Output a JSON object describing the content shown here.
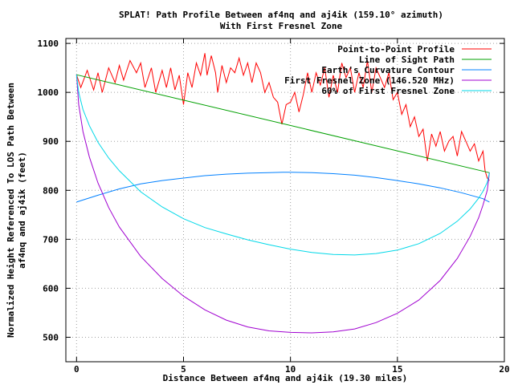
{
  "chart_data": {
    "type": "line",
    "title": "SPLAT! Path Profile Between af4nq and aj4ik (159.10° azimuth)",
    "subtitle": "With First Fresnel Zone",
    "xlabel": "Distance Between af4nq and aj4ik (19.30 miles)",
    "ylabel": "Normalized Height Referenced To LOS Path Between af4nq and aj4ik (feet)",
    "ylabel_lines": [
      "Normalized Height Referenced To LOS Path Between",
      "af4nq and aj4ik (feet)"
    ],
    "xlim": [
      -0.5,
      20
    ],
    "ylim": [
      450,
      1110
    ],
    "xticks": [
      0,
      5,
      10,
      15,
      20
    ],
    "xtick_labels": [
      "0",
      "5",
      "10",
      "15",
      "20"
    ],
    "yticks": [
      500,
      600,
      700,
      800,
      900,
      1000,
      1100
    ],
    "ytick_labels": [
      "500",
      "600",
      "700",
      "800",
      "900",
      "1000",
      "1100"
    ],
    "grid": true,
    "legend_position": "top-right",
    "series": [
      {
        "name": "Point-to-Point Profile",
        "color": "#ff0000",
        "x": [
          0,
          0.2,
          0.5,
          0.8,
          1.0,
          1.2,
          1.5,
          1.8,
          2.0,
          2.2,
          2.5,
          2.8,
          3.0,
          3.2,
          3.5,
          3.7,
          4.0,
          4.2,
          4.4,
          4.6,
          4.8,
          5.0,
          5.2,
          5.4,
          5.6,
          5.8,
          6.0,
          6.1,
          6.3,
          6.5,
          6.6,
          6.8,
          7.0,
          7.2,
          7.4,
          7.6,
          7.8,
          8.0,
          8.2,
          8.4,
          8.6,
          8.8,
          9.0,
          9.2,
          9.4,
          9.6,
          9.8,
          10.0,
          10.2,
          10.4,
          10.6,
          10.8,
          11.0,
          11.2,
          11.4,
          11.6,
          11.8,
          12.0,
          12.2,
          12.4,
          12.6,
          12.8,
          13.0,
          13.2,
          13.4,
          13.6,
          13.8,
          14.0,
          14.2,
          14.4,
          14.6,
          14.8,
          15.0,
          15.2,
          15.4,
          15.6,
          15.8,
          16.0,
          16.2,
          16.4,
          16.6,
          16.8,
          17.0,
          17.2,
          17.4,
          17.6,
          17.8,
          18.0,
          18.2,
          18.4,
          18.6,
          18.8,
          19.0,
          19.1,
          19.2,
          19.3
        ],
        "y": [
          1036,
          1010,
          1045,
          1005,
          1040,
          1000,
          1050,
          1020,
          1055,
          1025,
          1065,
          1040,
          1060,
          1010,
          1050,
          1000,
          1045,
          1010,
          1050,
          1005,
          1035,
          975,
          1040,
          1010,
          1060,
          1035,
          1080,
          1035,
          1075,
          1040,
          1000,
          1055,
          1020,
          1050,
          1040,
          1070,
          1035,
          1060,
          1020,
          1060,
          1040,
          1000,
          1020,
          990,
          980,
          935,
          975,
          980,
          1000,
          960,
          995,
          1040,
          1000,
          1040,
          1015,
          1050,
          990,
          1035,
          1000,
          1060,
          1030,
          1050,
          1000,
          1040,
          1010,
          1065,
          1000,
          1050,
          1030,
          1010,
          1040,
          985,
          1000,
          955,
          975,
          930,
          950,
          910,
          925,
          860,
          915,
          890,
          920,
          880,
          900,
          910,
          870,
          920,
          900,
          880,
          895,
          860,
          880,
          840,
          825,
          820
        ]
      },
      {
        "name": "Line of Sight Path",
        "color": "#00a000",
        "x": [
          0,
          19.3
        ],
        "y": [
          1036,
          836
        ]
      },
      {
        "name": "Earth's Curvature Contour",
        "color": "#0080ff",
        "x": [
          0,
          1,
          2,
          3,
          4,
          5,
          6,
          7,
          8,
          9,
          9.65,
          10,
          11,
          12,
          13,
          14,
          15,
          16,
          17,
          18,
          19,
          19.3
        ],
        "y": [
          776,
          790,
          803,
          813,
          820,
          825,
          830,
          833,
          835,
          836,
          837,
          837,
          836,
          834,
          831,
          826,
          820,
          813,
          805,
          795,
          783,
          776
        ]
      },
      {
        "name": "First Fresnel Zone (146.520 MHz)",
        "color": "#a000d0",
        "x": [
          0,
          0.1,
          0.3,
          0.6,
          1.0,
          1.5,
          2.0,
          3.0,
          4.0,
          5.0,
          6.0,
          7.0,
          8.0,
          9.0,
          10.0,
          11.0,
          12.0,
          13.0,
          14.0,
          15.0,
          16.0,
          17.0,
          17.8,
          18.4,
          18.8,
          19.0,
          19.2,
          19.3
        ],
        "y": [
          1036,
          975,
          920,
          868,
          815,
          765,
          725,
          665,
          620,
          584,
          556,
          535,
          521,
          513,
          510,
          509,
          511,
          517,
          530,
          549,
          576,
          616,
          661,
          706,
          744,
          770,
          800,
          836
        ]
      },
      {
        "name": "60% of First Fresnel Zone",
        "color": "#00d8e8",
        "x": [
          0,
          0.1,
          0.3,
          0.6,
          1.0,
          1.5,
          2.0,
          3.0,
          4.0,
          5.0,
          6.0,
          7.0,
          8.0,
          9.0,
          10.0,
          11.0,
          12.0,
          13.0,
          14.0,
          15.0,
          16.0,
          17.0,
          17.8,
          18.4,
          18.8,
          19.0,
          19.2,
          19.3
        ],
        "y": [
          1036,
          1000,
          965,
          932,
          898,
          866,
          840,
          797,
          766,
          742,
          724,
          711,
          699,
          689,
          680,
          673,
          669,
          668,
          671,
          678,
          691,
          712,
          737,
          762,
          784,
          798,
          816,
          836
        ]
      }
    ]
  }
}
